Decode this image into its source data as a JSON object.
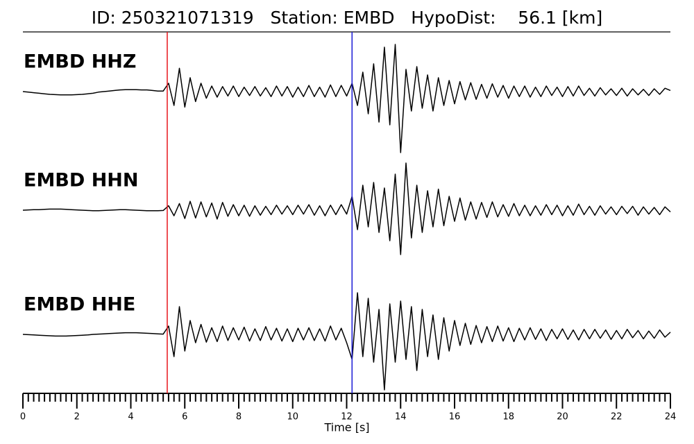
{
  "chart_data": {
    "type": "line",
    "title": "ID: 250321071319   Station: EMBD   HypoDist:    56.1 [km]",
    "xlabel": "Time [s]",
    "xlim": [
      0,
      24
    ],
    "xticks": [
      0,
      2,
      4,
      6,
      8,
      10,
      12,
      14,
      16,
      18,
      20,
      22,
      24
    ],
    "minor_xticks": [
      0.2,
      0.4,
      0.6,
      0.8,
      1,
      1.2,
      1.4,
      1.6,
      1.8,
      2.2,
      2.4,
      2.6,
      2.8,
      3,
      3.2,
      3.4,
      3.6,
      3.8,
      4.2,
      4.4,
      4.6,
      4.8,
      5,
      5.2,
      5.4,
      5.6,
      5.8,
      6.2,
      6.4,
      6.6,
      6.8,
      7,
      7.2,
      7.4,
      7.6,
      7.8,
      8.2,
      8.4,
      8.6,
      8.8,
      9,
      9.2,
      9.4,
      9.6,
      9.8,
      10.2,
      10.4,
      10.6,
      10.8,
      11,
      11.2,
      11.4,
      11.6,
      11.8,
      12.2,
      12.4,
      12.6,
      12.8,
      13,
      13.2,
      13.4,
      13.6,
      13.8,
      14.2,
      14.4,
      14.6,
      14.8,
      15,
      15.2,
      15.4,
      15.6,
      15.8,
      16.2,
      16.4,
      16.6,
      16.8,
      17,
      17.2,
      17.4,
      17.6,
      17.8,
      18.2,
      18.4,
      18.6,
      18.8,
      19,
      19.2,
      19.4,
      19.6,
      19.8,
      20.2,
      20.4,
      20.6,
      20.8,
      21,
      21.2,
      21.4,
      21.6,
      21.8,
      22.2,
      22.4,
      22.6,
      22.8,
      23,
      23.2,
      23.4,
      23.6,
      23.8
    ],
    "ylim": [
      -12,
      12
    ],
    "label_color": "#4e9a06",
    "x": [
      0,
      0.2,
      0.4,
      0.6,
      0.8,
      1,
      1.2,
      1.4,
      1.6,
      1.8,
      2,
      2.2,
      2.4,
      2.6,
      2.8,
      3,
      3.2,
      3.4,
      3.6,
      3.8,
      4,
      4.2,
      4.4,
      4.6,
      4.8,
      5,
      5.2,
      5.4,
      5.6,
      5.8,
      6,
      6.2,
      6.4,
      6.6,
      6.8,
      7,
      7.2,
      7.4,
      7.6,
      7.8,
      8,
      8.2,
      8.4,
      8.6,
      8.8,
      9,
      9.2,
      9.4,
      9.6,
      9.8,
      10,
      10.2,
      10.4,
      10.6,
      10.8,
      11,
      11.2,
      11.4,
      11.6,
      11.8,
      12,
      12.2,
      12.4,
      12.6,
      12.8,
      13,
      13.2,
      13.4,
      13.6,
      13.8,
      14,
      14.2,
      14.4,
      14.6,
      14.8,
      15,
      15.2,
      15.4,
      15.6,
      15.8,
      16,
      16.2,
      16.4,
      16.6,
      16.8,
      17,
      17.2,
      17.4,
      17.6,
      17.8,
      18,
      18.2,
      18.4,
      18.6,
      18.8,
      19,
      19.2,
      19.4,
      19.6,
      19.8,
      20,
      20.2,
      20.4,
      20.6,
      20.8,
      21,
      21.2,
      21.4,
      21.6,
      21.8,
      22,
      22.2,
      22.4,
      22.6,
      22.8,
      23,
      23.2,
      23.4,
      23.6,
      23.8,
      24
    ],
    "series": [
      {
        "name": "EMBD HHZ",
        "color": "#000000",
        "values": [
          0,
          -0.1,
          -0.2,
          -0.3,
          -0.4,
          -0.5,
          -0.55,
          -0.6,
          -0.6,
          -0.6,
          -0.55,
          -0.5,
          -0.4,
          -0.3,
          -0.1,
          0,
          0.1,
          0.2,
          0.3,
          0.35,
          0.35,
          0.35,
          0.3,
          0.3,
          0.2,
          0.1,
          0.1,
          1.5,
          -2.5,
          4.2,
          -2.8,
          2.5,
          -1.8,
          1.5,
          -1.2,
          1.0,
          -1.0,
          0.9,
          -0.8,
          1.0,
          -0.9,
          0.8,
          -0.7,
          0.9,
          -0.8,
          0.7,
          -0.9,
          1.0,
          -0.8,
          0.9,
          -1.0,
          0.8,
          -0.9,
          1.1,
          -0.9,
          0.8,
          -1.0,
          1.2,
          -0.9,
          1.1,
          -0.8,
          1.5,
          -2.5,
          3.5,
          -4.0,
          5.0,
          -5.5,
          8.0,
          -6.0,
          8.5,
          -11.0,
          4.0,
          -3.5,
          4.5,
          -3.0,
          3.0,
          -3.5,
          2.5,
          -2.5,
          2.0,
          -2.2,
          1.8,
          -1.5,
          1.6,
          -1.4,
          1.3,
          -1.2,
          1.4,
          -1.0,
          1.1,
          -1.2,
          1.0,
          -0.9,
          1.0,
          -1.0,
          0.8,
          -0.9,
          1.0,
          -0.7,
          0.8,
          -0.9,
          0.9,
          -0.8,
          1.0,
          -0.7,
          0.6,
          -0.8,
          0.7,
          -0.6,
          0.5,
          -0.7,
          0.6,
          -0.8,
          0.5,
          -0.6,
          0.4,
          -0.7,
          0.5,
          -0.5,
          0.6,
          0.2
        ]
      },
      {
        "name": "EMBD HHN",
        "color": "#000000",
        "values": [
          0,
          0.05,
          0.1,
          0.1,
          0.15,
          0.2,
          0.2,
          0.2,
          0.15,
          0.1,
          0.05,
          0,
          -0.05,
          -0.1,
          -0.1,
          -0.05,
          0,
          0.05,
          0.1,
          0.1,
          0.05,
          0,
          -0.05,
          -0.1,
          -0.1,
          -0.1,
          -0.05,
          0.8,
          -1.0,
          1.2,
          -1.5,
          1.6,
          -1.4,
          1.5,
          -1.2,
          1.3,
          -1.6,
          1.4,
          -1.1,
          1.0,
          -1.0,
          0.9,
          -1.1,
          0.8,
          -0.9,
          0.7,
          -0.8,
          0.9,
          -0.7,
          0.8,
          -0.8,
          0.9,
          -0.7,
          1.0,
          -0.9,
          0.8,
          -1.0,
          0.9,
          -0.8,
          1.0,
          -0.7,
          2.5,
          -3.5,
          4.5,
          -3.0,
          5.0,
          -4.0,
          4.0,
          -5.5,
          6.5,
          -8.0,
          8.5,
          -5.0,
          4.5,
          -4.0,
          3.5,
          -3.0,
          3.8,
          -2.8,
          2.5,
          -2.0,
          2.2,
          -1.8,
          1.5,
          -1.6,
          1.4,
          -1.3,
          1.5,
          -1.2,
          1.0,
          -1.1,
          1.2,
          -1.0,
          0.9,
          -1.0,
          0.8,
          -0.9,
          1.0,
          -0.8,
          0.9,
          -1.0,
          0.8,
          -0.9,
          1.1,
          -0.8,
          0.7,
          -0.9,
          0.8,
          -0.7,
          0.6,
          -0.8,
          0.7,
          -0.6,
          0.7,
          -0.9,
          0.6,
          -0.7,
          0.5,
          -0.8,
          0.6,
          -0.3
        ]
      },
      {
        "name": "EMBD HHE",
        "color": "#000000",
        "values": [
          0,
          -0.05,
          -0.1,
          -0.15,
          -0.2,
          -0.25,
          -0.3,
          -0.3,
          -0.3,
          -0.25,
          -0.2,
          -0.15,
          -0.1,
          0,
          0.05,
          0.1,
          0.15,
          0.2,
          0.25,
          0.3,
          0.3,
          0.3,
          0.25,
          0.2,
          0.15,
          0.1,
          0.05,
          1.5,
          -4.0,
          5.0,
          -3.0,
          2.5,
          -1.5,
          1.8,
          -1.4,
          1.2,
          -1.3,
          1.5,
          -1.1,
          1.2,
          -1.0,
          1.3,
          -1.2,
          1.0,
          -1.1,
          1.4,
          -1.0,
          1.1,
          -1.2,
          1.0,
          -1.3,
          1.1,
          -1.0,
          1.2,
          -1.1,
          1.0,
          -1.2,
          1.5,
          -1.0,
          1.1,
          -1.5,
          -4.5,
          7.5,
          -4.0,
          6.5,
          -5.0,
          4.5,
          -10.0,
          5.5,
          -5.0,
          6.0,
          -4.5,
          5.0,
          -6.5,
          4.5,
          -4.0,
          3.5,
          -4.5,
          3.0,
          -3.0,
          2.5,
          -2.0,
          2.0,
          -1.8,
          1.6,
          -1.5,
          1.4,
          -1.3,
          1.5,
          -1.2,
          1.2,
          -1.3,
          1.1,
          -1.0,
          1.2,
          -0.9,
          1.0,
          -1.1,
          0.9,
          -0.8,
          1.0,
          -0.9,
          0.8,
          -1.0,
          0.9,
          -0.8,
          0.9,
          -0.7,
          0.8,
          -0.9,
          0.7,
          -0.8,
          0.9,
          -0.6,
          0.7,
          -0.8,
          0.6,
          -0.7,
          0.8,
          -0.5,
          0.4
        ]
      }
    ],
    "picks": [
      {
        "x": 5.35,
        "color": "#e8141a"
      },
      {
        "x": 12.2,
        "color": "#1a1ad6"
      }
    ]
  }
}
